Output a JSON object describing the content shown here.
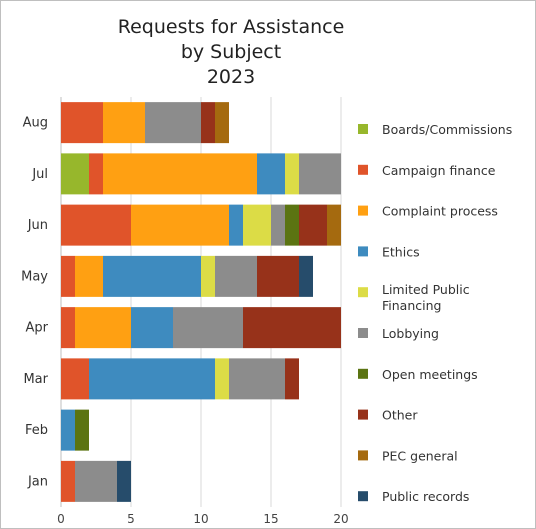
{
  "chart_data": {
    "type": "bar",
    "orientation": "horizontal",
    "stacked": true,
    "title": [
      "Requests for Assistance",
      "by Subject",
      "2023"
    ],
    "categories": [
      "Aug",
      "Jul",
      "Jun",
      "May",
      "Apr",
      "Mar",
      "Feb",
      "Jan"
    ],
    "xlim": [
      0,
      20
    ],
    "xticks": [
      "0",
      "5",
      "10",
      "15",
      "20"
    ],
    "grid": true,
    "legend_position": "right",
    "series": [
      {
        "name": "Boards/Commissions",
        "color": "#97b72c",
        "values": [
          0,
          2,
          0,
          0,
          0,
          0,
          0,
          0
        ]
      },
      {
        "name": "Campaign finance",
        "color": "#e0542a",
        "values": [
          3,
          1,
          5,
          1,
          1,
          2,
          0,
          1
        ]
      },
      {
        "name": "Complaint process",
        "color": "#ffa012",
        "values": [
          3,
          11,
          7,
          2,
          4,
          0,
          0,
          0
        ]
      },
      {
        "name": "Ethics",
        "color": "#3e8bbf",
        "values": [
          0,
          2,
          1,
          7,
          3,
          9,
          1,
          0
        ]
      },
      {
        "name": "Limited Public Financing",
        "color": "#dcdc46",
        "values": [
          0,
          1,
          2,
          1,
          0,
          1,
          0,
          0
        ]
      },
      {
        "name": "Lobbying",
        "color": "#8c8c8c",
        "values": [
          4,
          3,
          1,
          3,
          5,
          4,
          0,
          3
        ]
      },
      {
        "name": "Open meetings",
        "color": "#5b7412",
        "values": [
          0,
          0,
          1,
          0,
          0,
          0,
          1,
          0
        ]
      },
      {
        "name": "Other",
        "color": "#97321a",
        "values": [
          1,
          0,
          2,
          3,
          7,
          1,
          0,
          0
        ]
      },
      {
        "name": "PEC general",
        "color": "#a56a0f",
        "values": [
          1,
          0,
          1,
          0,
          0,
          0,
          0,
          0
        ]
      },
      {
        "name": "Public records",
        "color": "#264c6b",
        "values": [
          0,
          0,
          0,
          1,
          0,
          0,
          0,
          1
        ]
      }
    ]
  }
}
